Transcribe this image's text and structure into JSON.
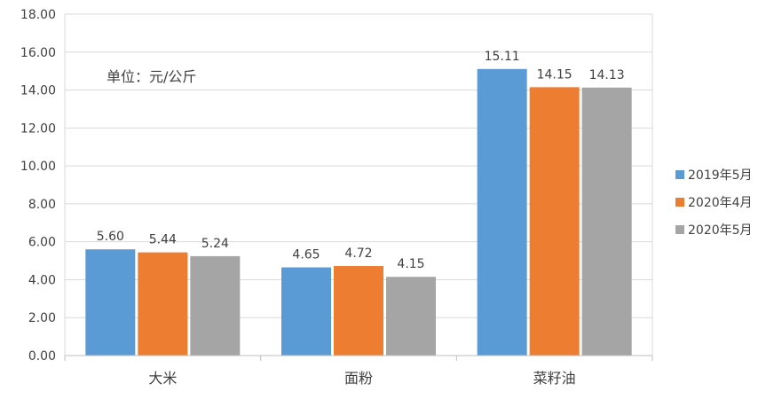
{
  "chart_data": {
    "type": "bar",
    "title": "",
    "xlabel": "",
    "ylabel": "",
    "unit_note": "单位：元/公斤",
    "categories": [
      "大米",
      "面粉",
      "菜籽油"
    ],
    "series": [
      {
        "name": "2019年5月",
        "color": "#5b9bd5",
        "values": [
          5.6,
          4.65,
          15.11
        ]
      },
      {
        "name": "2020年4月",
        "color": "#ed7d31",
        "values": [
          5.44,
          4.72,
          14.15
        ]
      },
      {
        "name": "2020年5月",
        "color": "#a5a5a5",
        "values": [
          5.24,
          4.15,
          14.13
        ]
      }
    ],
    "ylim": [
      0,
      18
    ],
    "yticks": [
      "0.00",
      "2.00",
      "4.00",
      "6.00",
      "8.00",
      "10.00",
      "12.00",
      "14.00",
      "16.00",
      "18.00"
    ],
    "grid": true,
    "legend_position": "right"
  }
}
